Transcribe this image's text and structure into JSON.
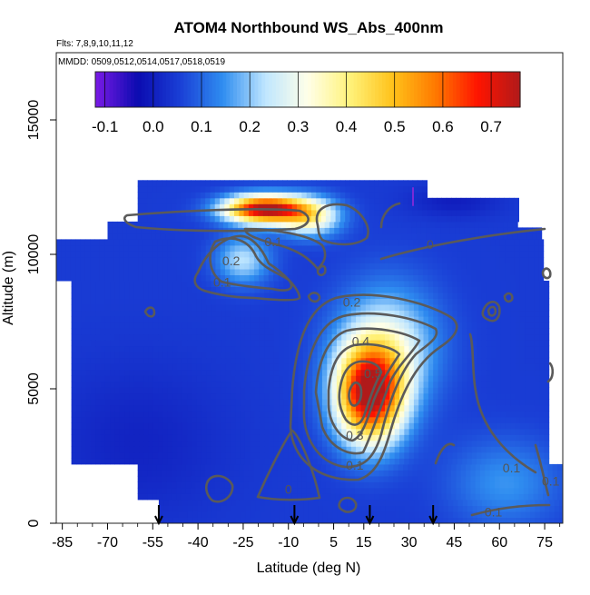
{
  "chart_data": {
    "type": "heatmap",
    "title": "ATOM4 Northbound WS_Abs_400nm",
    "subtitle_lines": [
      "Flts: 7,8,9,10,11,12",
      "MMDD: 0509,0512,0514,0517,0518,0519"
    ],
    "xlabel": "Latitude (deg N)",
    "ylabel": "Altitude (m)",
    "xlim": [
      -87,
      81
    ],
    "ylim": [
      0,
      17500
    ],
    "x_ticks": [
      -85,
      -70,
      -55,
      -40,
      -25,
      -10,
      5,
      15,
      30,
      45,
      60,
      75
    ],
    "x_tick_labels": [
      "-85",
      "-70",
      "-55",
      "-40",
      "-25",
      "-10",
      "5",
      "15",
      "30",
      "45",
      "60",
      "75"
    ],
    "y_ticks": [
      0,
      5000,
      10000,
      15000
    ],
    "y_tick_labels": [
      "0",
      "5000",
      "10000",
      "15000"
    ],
    "colorbar": {
      "ticks": [
        -0.1,
        0.0,
        0.1,
        0.2,
        0.3,
        0.4,
        0.5,
        0.6,
        0.7
      ],
      "tick_labels": [
        "-0.1",
        "0.0",
        "0.1",
        "0.2",
        "0.3",
        "0.4",
        "0.5",
        "0.6",
        "0.7"
      ],
      "range": [
        -0.12,
        0.76
      ],
      "colors": [
        "#7a1ae6",
        "#0b0bb0",
        "#1a3fd6",
        "#2f8df0",
        "#bfe6ff",
        "#ffffe8",
        "#fff27a",
        "#ffc21a",
        "#ff7a00",
        "#ff1400",
        "#b01a1a"
      ]
    },
    "flight_markers_lat": [
      -53,
      -8,
      17,
      38
    ],
    "contour_labels": [
      {
        "text": "0.1",
        "lat": -15,
        "alt": 10300
      },
      {
        "text": "0",
        "lat": 37,
        "alt": 10200
      },
      {
        "text": "0.2",
        "lat": -29,
        "alt": 9600
      },
      {
        "text": "0.1",
        "lat": -32,
        "alt": 8800
      },
      {
        "text": "0.2",
        "lat": 11,
        "alt": 8050
      },
      {
        "text": "0.4",
        "lat": 14,
        "alt": 6600
      },
      {
        "text": "0.5",
        "lat": 18,
        "alt": 5400
      },
      {
        "text": "0.3",
        "lat": 12,
        "alt": 3100
      },
      {
        "text": "0.1",
        "lat": 12,
        "alt": 2000
      },
      {
        "text": "0",
        "lat": -10,
        "alt": 1100
      },
      {
        "text": "0.1",
        "lat": 64,
        "alt": 1900
      },
      {
        "text": "0.1",
        "lat": 77,
        "alt": 1400
      },
      {
        "text": "0.1",
        "lat": 58,
        "alt": 250
      }
    ]
  }
}
